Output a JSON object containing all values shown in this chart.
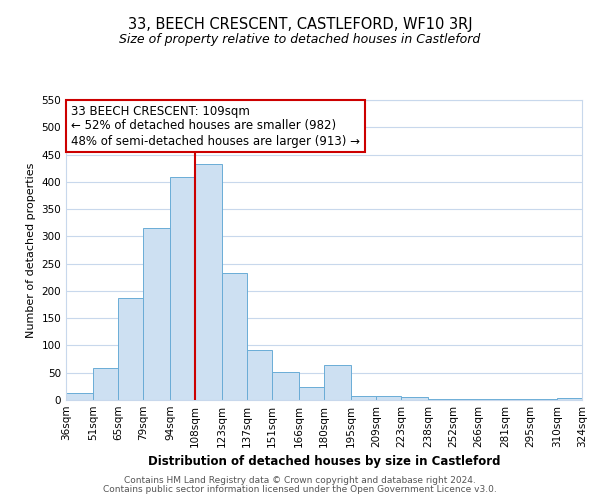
{
  "title": "33, BEECH CRESCENT, CASTLEFORD, WF10 3RJ",
  "subtitle": "Size of property relative to detached houses in Castleford",
  "xlabel": "Distribution of detached houses by size in Castleford",
  "ylabel": "Number of detached properties",
  "bin_edges": [
    36,
    51,
    65,
    79,
    94,
    108,
    123,
    137,
    151,
    166,
    180,
    195,
    209,
    223,
    238,
    252,
    266,
    281,
    295,
    310,
    324
  ],
  "bin_labels": [
    "36sqm",
    "51sqm",
    "65sqm",
    "79sqm",
    "94sqm",
    "108sqm",
    "123sqm",
    "137sqm",
    "151sqm",
    "166sqm",
    "180sqm",
    "195sqm",
    "209sqm",
    "223sqm",
    "238sqm",
    "252sqm",
    "266sqm",
    "281sqm",
    "295sqm",
    "310sqm",
    "324sqm"
  ],
  "counts": [
    12,
    59,
    187,
    316,
    408,
    432,
    232,
    92,
    52,
    24,
    65,
    8,
    8,
    5,
    2,
    2,
    2,
    2,
    2,
    3
  ],
  "bar_color": "#cde0f2",
  "bar_edge_color": "#6aacd6",
  "vline_x": 108,
  "vline_color": "#cc0000",
  "annotation_line1": "33 BEECH CRESCENT: 109sqm",
  "annotation_line2": "← 52% of detached houses are smaller (982)",
  "annotation_line3": "48% of semi-detached houses are larger (913) →",
  "annotation_box_color": "white",
  "annotation_box_edge_color": "#cc0000",
  "ylim": [
    0,
    550
  ],
  "yticks": [
    0,
    50,
    100,
    150,
    200,
    250,
    300,
    350,
    400,
    450,
    500,
    550
  ],
  "footer1": "Contains HM Land Registry data © Crown copyright and database right 2024.",
  "footer2": "Contains public sector information licensed under the Open Government Licence v3.0.",
  "bg_color": "white",
  "grid_color": "#c8d8ec",
  "title_fontsize": 10.5,
  "subtitle_fontsize": 9,
  "ylabel_fontsize": 8,
  "xlabel_fontsize": 8.5,
  "tick_fontsize": 7.5,
  "annotation_fontsize": 8.5
}
